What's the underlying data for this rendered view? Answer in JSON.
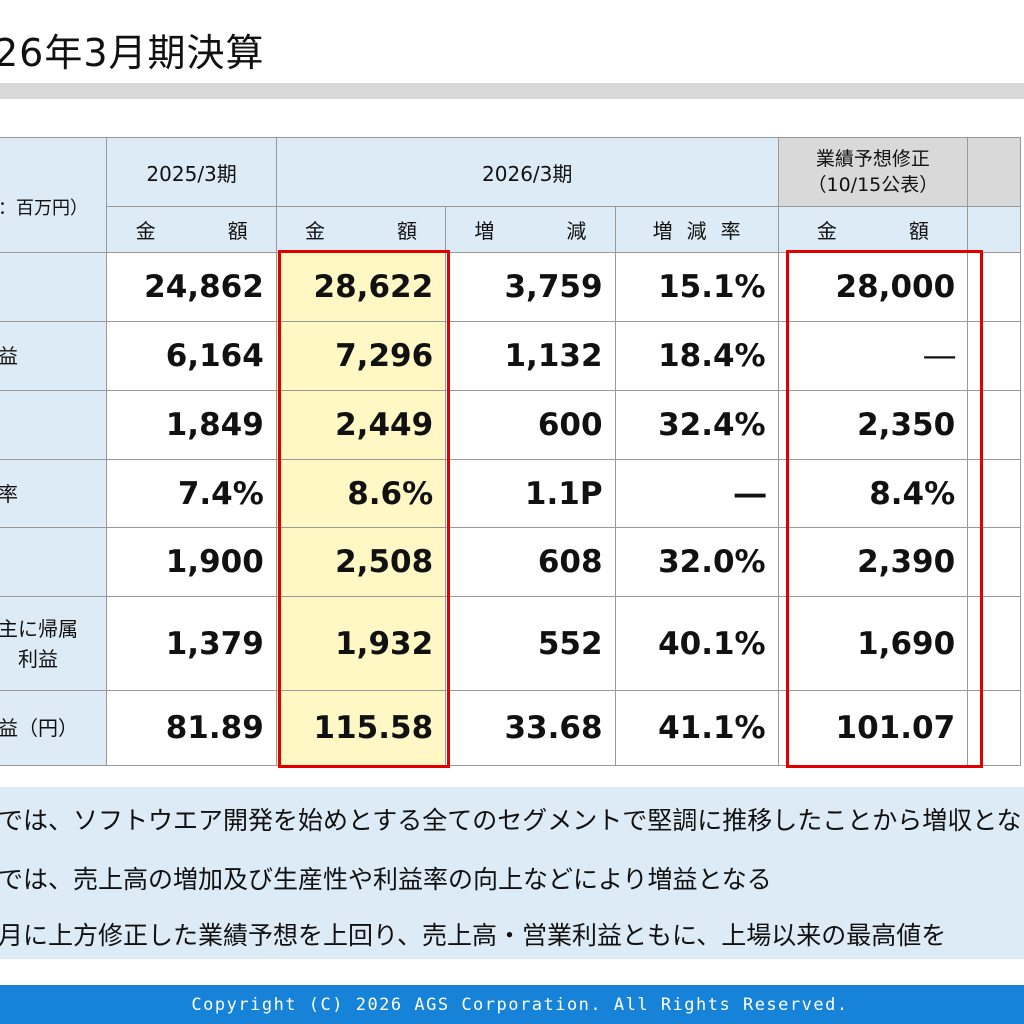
{
  "title": "26年3月期決算",
  "table": {
    "unit_label": "：百万円）",
    "col_2025": "2025/3期",
    "col_2026": "2026/3期",
    "col_forecast_line1": "業績予想修正",
    "col_forecast_line2": "（10/15公表）",
    "sub_amount": "金　額",
    "sub_change": "増　減",
    "sub_change_rate": "増減率",
    "rows": [
      {
        "label": "",
        "label2": "",
        "v2025": "24,862",
        "v2026": "28,622",
        "diff": "3,759",
        "rate": "15.1%",
        "forecast": "28,000"
      },
      {
        "label": "益",
        "label2": "",
        "v2025": "6,164",
        "v2026": "7,296",
        "diff": "1,132",
        "rate": "18.4%",
        "forecast": "―"
      },
      {
        "label": "",
        "label2": "",
        "v2025": "1,849",
        "v2026": "2,449",
        "diff": "600",
        "rate": "32.4%",
        "forecast": "2,350"
      },
      {
        "label": "率",
        "label2": "",
        "v2025": "7.4%",
        "v2026": "8.6%",
        "diff": "1.1P",
        "rate": "―",
        "forecast": "8.4%"
      },
      {
        "label": "",
        "label2": "",
        "v2025": "1,900",
        "v2026": "2,508",
        "diff": "608",
        "rate": "32.0%",
        "forecast": "2,390"
      },
      {
        "label": "主に帰属",
        "label2": "利益",
        "v2025": "1,379",
        "v2026": "1,932",
        "diff": "552",
        "rate": "40.1%",
        "forecast": "1,690"
      },
      {
        "label": "益（円）",
        "label2": "",
        "v2025": "81.89",
        "v2026": "115.58",
        "diff": "33.68",
        "rate": "41.1%",
        "forecast": "101.07"
      }
    ]
  },
  "notes": [
    "では、ソフトウエア開発を始めとする全てのセグメントで堅調に推移したことから増収となる",
    "では、売上高の増加及び生産性や利益率の向上などにより増益となる",
    "月に上方修正した業績予想を上回り、売上高・営業利益ともに、上場以来の最高値を"
  ],
  "footer": "Copyright (C) 2026 AGS Corporation. All Rights Reserved.",
  "colors": {
    "header_blue": "#ddebf7",
    "highlight_yellow": "#fff8c5",
    "red_border": "#e00000",
    "footer_blue": "#1683d8"
  }
}
